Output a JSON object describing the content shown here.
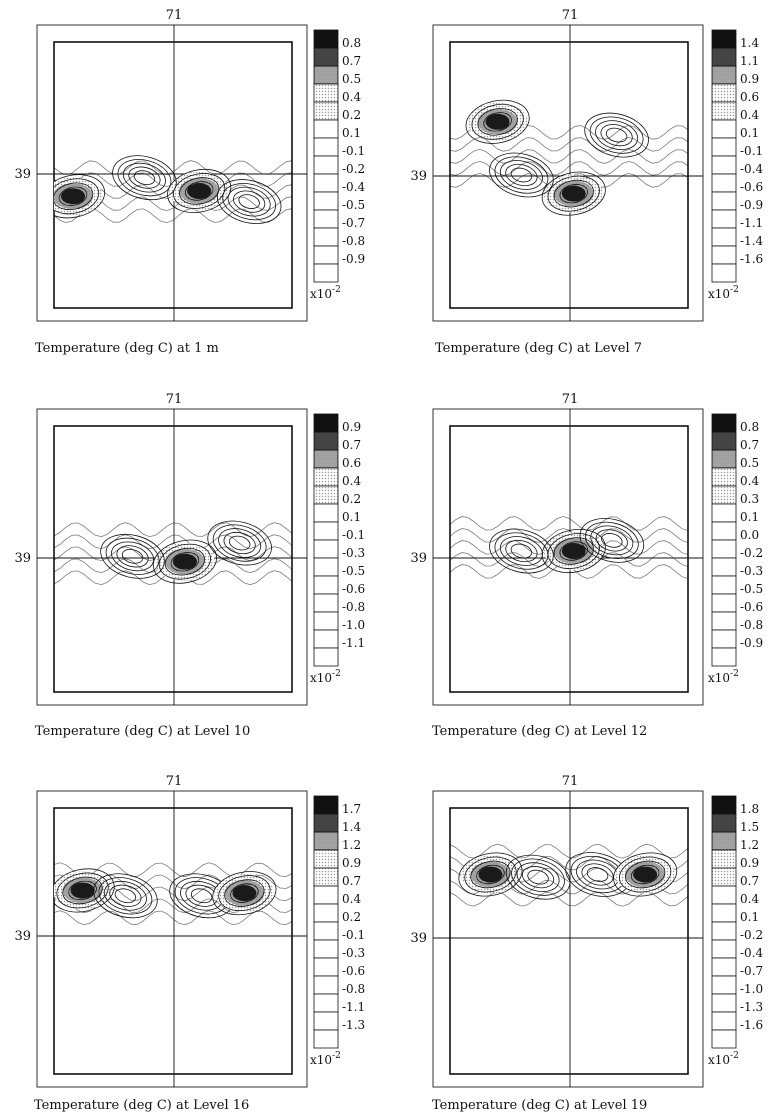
{
  "colors": {
    "ink": "#111111",
    "dark": "#1a1a1a",
    "mid": "#5a5a5a",
    "light_dots": "#9a9a9a",
    "paper": "#ffffff"
  },
  "chart_data": [
    {
      "type": "heatmap",
      "title": "Temperature (deg C) at 1 m",
      "x_tick": "71",
      "y_tick": "39",
      "colorbar": {
        "levels": [
          "0.8",
          "0.7",
          "0.5",
          "0.4",
          "0.2",
          "0.1",
          "-0.1",
          "-0.2",
          "-0.4",
          "-0.5",
          "-0.7",
          "-0.8",
          "-0.9"
        ],
        "scale_label": "x10",
        "scale_exp": "-2"
      },
      "features": [
        {
          "kind": "positive_max",
          "x": 0.08,
          "y": 0.58
        },
        {
          "kind": "positive_max",
          "x": 0.61,
          "y": 0.56
        },
        {
          "kind": "negative_min",
          "x": 0.38,
          "y": 0.51
        },
        {
          "kind": "negative_min",
          "x": 0.82,
          "y": 0.6
        }
      ]
    },
    {
      "type": "heatmap",
      "title": "Temperature (deg C) at Level 7",
      "x_tick": "71",
      "y_tick": "39",
      "colorbar": {
        "levels": [
          "1.4",
          "1.1",
          "0.9",
          "0.6",
          "0.4",
          "0.1",
          "-0.1",
          "-0.4",
          "-0.6",
          "-0.9",
          "-1.1",
          "-1.4",
          "-1.6"
        ],
        "scale_label": "x10",
        "scale_exp": "-2"
      },
      "features": [
        {
          "kind": "positive_max",
          "x": 0.52,
          "y": 0.57
        },
        {
          "kind": "negative_min",
          "x": 0.3,
          "y": 0.5
        },
        {
          "kind": "positive_max",
          "x": 0.2,
          "y": 0.3
        },
        {
          "kind": "negative_min",
          "x": 0.7,
          "y": 0.35
        }
      ]
    },
    {
      "type": "heatmap",
      "title": "Temperature (deg C) at Level 10",
      "x_tick": "71",
      "y_tick": "39",
      "colorbar": {
        "levels": [
          "0.9",
          "0.7",
          "0.6",
          "0.4",
          "0.2",
          "0.1",
          "-0.1",
          "-0.3",
          "-0.5",
          "-0.6",
          "-0.8",
          "-1.0",
          "-1.1"
        ],
        "scale_label": "x10",
        "scale_exp": "-2"
      },
      "features": [
        {
          "kind": "positive_max",
          "x": 0.55,
          "y": 0.51
        },
        {
          "kind": "negative_min",
          "x": 0.33,
          "y": 0.49
        },
        {
          "kind": "negative_min",
          "x": 0.78,
          "y": 0.44
        }
      ]
    },
    {
      "type": "heatmap",
      "title": "Temperature (deg C) at Level 12",
      "x_tick": "71",
      "y_tick": "39",
      "colorbar": {
        "levels": [
          "0.8",
          "0.7",
          "0.5",
          "0.4",
          "0.3",
          "0.1",
          "0.0",
          "-0.2",
          "-0.3",
          "-0.5",
          "-0.6",
          "-0.8",
          "-0.9"
        ],
        "scale_label": "x10",
        "scale_exp": "-2"
      },
      "features": [
        {
          "kind": "positive_max",
          "x": 0.52,
          "y": 0.47
        },
        {
          "kind": "negative_min",
          "x": 0.3,
          "y": 0.47
        },
        {
          "kind": "negative_min",
          "x": 0.68,
          "y": 0.43
        }
      ]
    },
    {
      "type": "heatmap",
      "title": "Temperature (deg C) at Level 16",
      "x_tick": "71",
      "y_tick": "39",
      "colorbar": {
        "levels": [
          "1.7",
          "1.4",
          "1.2",
          "0.9",
          "0.7",
          "0.4",
          "0.2",
          "-0.1",
          "-0.3",
          "-0.6",
          "-0.8",
          "-1.1",
          "-1.3"
        ],
        "scale_label": "x10",
        "scale_exp": "-2"
      },
      "features": [
        {
          "kind": "positive_max",
          "x": 0.12,
          "y": 0.31
        },
        {
          "kind": "negative_min",
          "x": 0.3,
          "y": 0.33
        },
        {
          "kind": "negative_min",
          "x": 0.62,
          "y": 0.33
        },
        {
          "kind": "positive_max",
          "x": 0.8,
          "y": 0.32
        }
      ]
    },
    {
      "type": "heatmap",
      "title": "Temperature (deg C) at Level 19",
      "x_tick": "71",
      "y_tick": "39",
      "colorbar": {
        "levels": [
          "1.8",
          "1.5",
          "1.2",
          "0.9",
          "0.7",
          "0.4",
          "0.1",
          "-0.2",
          "-0.4",
          "-0.7",
          "-1.0",
          "-1.3",
          "-1.6"
        ],
        "scale_label": "x10",
        "scale_exp": "-2"
      },
      "features": [
        {
          "kind": "positive_max",
          "x": 0.17,
          "y": 0.25
        },
        {
          "kind": "negative_min",
          "x": 0.37,
          "y": 0.26
        },
        {
          "kind": "negative_min",
          "x": 0.62,
          "y": 0.25
        },
        {
          "kind": "positive_max",
          "x": 0.82,
          "y": 0.25
        }
      ]
    }
  ]
}
